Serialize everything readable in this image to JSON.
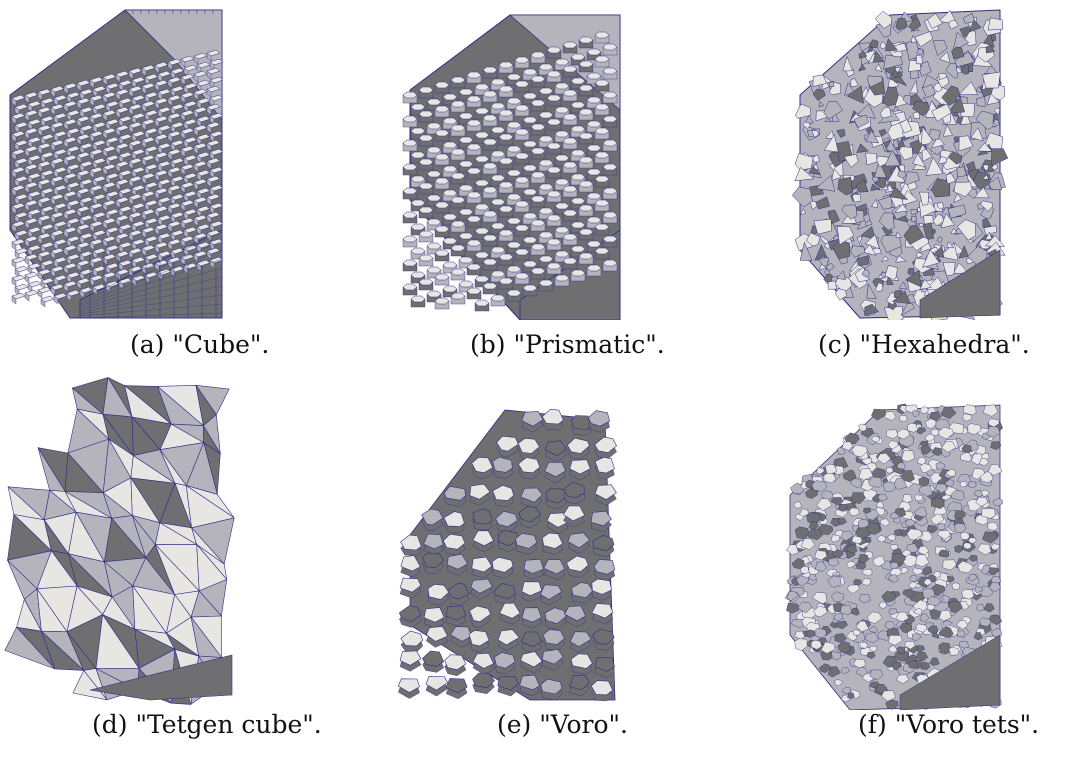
{
  "figure": {
    "panels": [
      {
        "id": "a",
        "caption": "(a) \"Cube\".",
        "mesh": "cube"
      },
      {
        "id": "b",
        "caption": "(b) \"Prismatic\".",
        "mesh": "prismatic"
      },
      {
        "id": "c",
        "caption": "(c) \"Hexahedra\".",
        "mesh": "hexahedra"
      },
      {
        "id": "d",
        "caption": "(d) \"Tetgen cube\".",
        "mesh": "tetgen-cube"
      },
      {
        "id": "e",
        "caption": "(e) \"Voro\".",
        "mesh": "voro"
      },
      {
        "id": "f",
        "caption": "(f) \"Voro tets\".",
        "mesh": "voro-tets"
      }
    ],
    "colors": {
      "face_light": "#e8e6e3",
      "face_mid": "#b5b4bc",
      "face_dark": "#6f6f72",
      "edge": "#2d2f86"
    }
  }
}
